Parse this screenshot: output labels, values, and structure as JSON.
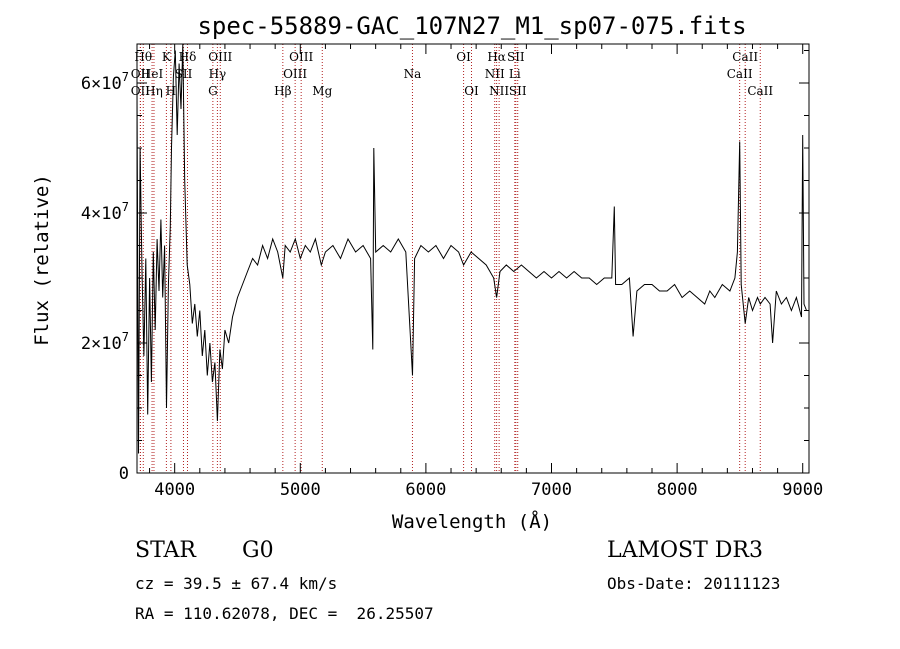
{
  "chart_data": {
    "type": "line",
    "title": "spec-55889-GAC_107N27_M1_sp07-075.fits",
    "xlabel": "Wavelength (Å)",
    "ylabel": "Flux (relative)",
    "xlim": [
      3700,
      9050
    ],
    "ylim": [
      0,
      66000000.0
    ],
    "x_ticks": [
      4000,
      5000,
      6000,
      7000,
      8000,
      9000
    ],
    "x_tick_labels": [
      "4000",
      "5000",
      "6000",
      "7000",
      "8000",
      "9000"
    ],
    "y_ticks": [
      0,
      20000000.0,
      40000000.0,
      60000000.0
    ],
    "y_tick_labels": [
      {
        "mantissa": "0",
        "exponent": ""
      },
      {
        "mantissa": "2×10",
        "exponent": "7"
      },
      {
        "mantissa": "4×10",
        "exponent": "7"
      },
      {
        "mantissa": "6×10",
        "exponent": "7"
      }
    ],
    "grid": false,
    "series": [
      {
        "points": [
          [
            3700,
            59000000.0
          ],
          [
            3712,
            3000000.0
          ],
          [
            3725,
            50000000.0
          ],
          [
            3740,
            31000000.0
          ],
          [
            3755,
            18000000.0
          ],
          [
            3770,
            33000000.0
          ],
          [
            3785,
            9000000.0
          ],
          [
            3800,
            30000000.0
          ],
          [
            3815,
            14000000.0
          ],
          [
            3830,
            34000000.0
          ],
          [
            3845,
            22000000.0
          ],
          [
            3860,
            36000000.0
          ],
          [
            3875,
            28000000.0
          ],
          [
            3890,
            39000000.0
          ],
          [
            3905,
            27000000.0
          ],
          [
            3920,
            35000000.0
          ],
          [
            3935,
            10000000.0
          ],
          [
            3950,
            29000000.0
          ],
          [
            3965,
            38000000.0
          ],
          [
            3975,
            50000000.0
          ],
          [
            3990,
            61000000.0
          ],
          [
            4005,
            65000000.0
          ],
          [
            4020,
            52000000.0
          ],
          [
            4035,
            63000000.0
          ],
          [
            4050,
            56000000.0
          ],
          [
            4065,
            66000000.0
          ],
          [
            4080,
            45000000.0
          ],
          [
            4100,
            32000000.0
          ],
          [
            4120,
            29000000.0
          ],
          [
            4140,
            23000000.0
          ],
          [
            4160,
            26000000.0
          ],
          [
            4180,
            21000000.0
          ],
          [
            4200,
            25000000.0
          ],
          [
            4220,
            18000000.0
          ],
          [
            4240,
            22000000.0
          ],
          [
            4260,
            15000000.0
          ],
          [
            4280,
            20000000.0
          ],
          [
            4300,
            14000000.0
          ],
          [
            4320,
            17000000.0
          ],
          [
            4340,
            8000000.0
          ],
          [
            4360,
            19000000.0
          ],
          [
            4380,
            16000000.0
          ],
          [
            4400,
            22000000.0
          ],
          [
            4430,
            20000000.0
          ],
          [
            4460,
            24000000.0
          ],
          [
            4500,
            27000000.0
          ],
          [
            4540,
            29000000.0
          ],
          [
            4580,
            31000000.0
          ],
          [
            4620,
            33000000.0
          ],
          [
            4660,
            32000000.0
          ],
          [
            4700,
            35000000.0
          ],
          [
            4740,
            33000000.0
          ],
          [
            4780,
            36000000.0
          ],
          [
            4820,
            34000000.0
          ],
          [
            4861,
            30000000.0
          ],
          [
            4880,
            35000000.0
          ],
          [
            4920,
            34000000.0
          ],
          [
            4960,
            36000000.0
          ],
          [
            5000,
            33000000.0
          ],
          [
            5040,
            35000000.0
          ],
          [
            5080,
            34000000.0
          ],
          [
            5120,
            36000000.0
          ],
          [
            5167,
            32000000.0
          ],
          [
            5200,
            34000000.0
          ],
          [
            5260,
            35000000.0
          ],
          [
            5320,
            33000000.0
          ],
          [
            5380,
            36000000.0
          ],
          [
            5440,
            34000000.0
          ],
          [
            5500,
            35000000.0
          ],
          [
            5560,
            33000000.0
          ],
          [
            5577,
            19000000.0
          ],
          [
            5585,
            50000000.0
          ],
          [
            5600,
            34000000.0
          ],
          [
            5660,
            35000000.0
          ],
          [
            5720,
            34000000.0
          ],
          [
            5780,
            36000000.0
          ],
          [
            5840,
            34000000.0
          ],
          [
            5893,
            15000000.0
          ],
          [
            5910,
            33000000.0
          ],
          [
            5960,
            35000000.0
          ],
          [
            6020,
            34000000.0
          ],
          [
            6080,
            35000000.0
          ],
          [
            6140,
            33000000.0
          ],
          [
            6200,
            35000000.0
          ],
          [
            6260,
            34000000.0
          ],
          [
            6300,
            32000000.0
          ],
          [
            6360,
            34000000.0
          ],
          [
            6420,
            33000000.0
          ],
          [
            6480,
            32000000.0
          ],
          [
            6540,
            30000000.0
          ],
          [
            6563,
            27000000.0
          ],
          [
            6590,
            31000000.0
          ],
          [
            6640,
            32000000.0
          ],
          [
            6700,
            31000000.0
          ],
          [
            6760,
            32000000.0
          ],
          [
            6820,
            31000000.0
          ],
          [
            6880,
            30000000.0
          ],
          [
            6940,
            31000000.0
          ],
          [
            7000,
            30000000.0
          ],
          [
            7060,
            31000000.0
          ],
          [
            7120,
            30000000.0
          ],
          [
            7180,
            31000000.0
          ],
          [
            7240,
            30000000.0
          ],
          [
            7300,
            30000000.0
          ],
          [
            7360,
            29000000.0
          ],
          [
            7420,
            30000000.0
          ],
          [
            7480,
            30000000.0
          ],
          [
            7500,
            41000000.0
          ],
          [
            7510,
            29000000.0
          ],
          [
            7560,
            29000000.0
          ],
          [
            7620,
            30000000.0
          ],
          [
            7650,
            21000000.0
          ],
          [
            7680,
            28000000.0
          ],
          [
            7740,
            29000000.0
          ],
          [
            7800,
            29000000.0
          ],
          [
            7860,
            28000000.0
          ],
          [
            7920,
            28000000.0
          ],
          [
            7980,
            29000000.0
          ],
          [
            8040,
            27000000.0
          ],
          [
            8100,
            28000000.0
          ],
          [
            8160,
            27000000.0
          ],
          [
            8220,
            26000000.0
          ],
          [
            8260,
            28000000.0
          ],
          [
            8300,
            27000000.0
          ],
          [
            8360,
            29000000.0
          ],
          [
            8420,
            28000000.0
          ],
          [
            8460,
            30000000.0
          ],
          [
            8480,
            34000000.0
          ],
          [
            8498,
            51000000.0
          ],
          [
            8510,
            29000000.0
          ],
          [
            8542,
            23000000.0
          ],
          [
            8570,
            27000000.0
          ],
          [
            8600,
            25000000.0
          ],
          [
            8640,
            27000000.0
          ],
          [
            8662,
            26000000.0
          ],
          [
            8700,
            27000000.0
          ],
          [
            8740,
            26000000.0
          ],
          [
            8760,
            20000000.0
          ],
          [
            8790,
            28000000.0
          ],
          [
            8830,
            26000000.0
          ],
          [
            8870,
            27000000.0
          ],
          [
            8910,
            25000000.0
          ],
          [
            8950,
            27000000.0
          ],
          [
            8990,
            24000000.0
          ],
          [
            9000,
            52000000.0
          ],
          [
            9010,
            26000000.0
          ],
          [
            9030,
            25000000.0
          ]
        ]
      }
    ],
    "spectral_lines": [
      {
        "label": "Hθ",
        "x": 3750,
        "row": 0
      },
      {
        "label": "OII",
        "x": 3727,
        "row": 1
      },
      {
        "label": "OII",
        "x": 3727,
        "row": 2
      },
      {
        "label": "HeI",
        "x": 3820,
        "row": 1
      },
      {
        "label": "Hη",
        "x": 3835,
        "row": 2
      },
      {
        "label": "K",
        "x": 3934,
        "row": 0
      },
      {
        "label": "SII",
        "x": 4070,
        "row": 1
      },
      {
        "label": "H",
        "x": 3970,
        "row": 2
      },
      {
        "label": "Hδ",
        "x": 4102,
        "row": 0
      },
      {
        "label": "OIII",
        "x": 4363,
        "row": 0
      },
      {
        "label": "Hγ",
        "x": 4340,
        "row": 1
      },
      {
        "label": "G",
        "x": 4304,
        "row": 2
      },
      {
        "label": "OIII",
        "x": 5007,
        "row": 0
      },
      {
        "label": "OIII",
        "x": 4959,
        "row": 1
      },
      {
        "label": "Hβ",
        "x": 4861,
        "row": 2
      },
      {
        "label": "Mg",
        "x": 5175,
        "row": 2
      },
      {
        "label": "Na",
        "x": 5893,
        "row": 1
      },
      {
        "label": "OI",
        "x": 6300,
        "row": 0
      },
      {
        "label": "OI",
        "x": 6363,
        "row": 2
      },
      {
        "label": "Hα",
        "x": 6563,
        "row": 0
      },
      {
        "label": "NII",
        "x": 6548,
        "row": 1
      },
      {
        "label": "NII",
        "x": 6583,
        "row": 2
      },
      {
        "label": "SII",
        "x": 6716,
        "row": 0
      },
      {
        "label": "Li",
        "x": 6708,
        "row": 1
      },
      {
        "label": "SII",
        "x": 6731,
        "row": 2
      },
      {
        "label": "CaII",
        "x": 8542,
        "row": 0
      },
      {
        "label": "CaII",
        "x": 8498,
        "row": 1
      },
      {
        "label": "CaII",
        "x": 8662,
        "row": 2
      }
    ]
  },
  "info": {
    "class_label": "STAR",
    "subclass_label": "G0",
    "survey": "LAMOST DR3",
    "redshift": "cz = 39.5 ± 67.4 km/s",
    "obs_date": "Obs-Date: 20111123",
    "coords": "RA = 110.62078, DEC =  26.25507"
  },
  "colors": {
    "spectrum": "#000000",
    "line_markers": "#b22222",
    "axes": "#000000"
  }
}
